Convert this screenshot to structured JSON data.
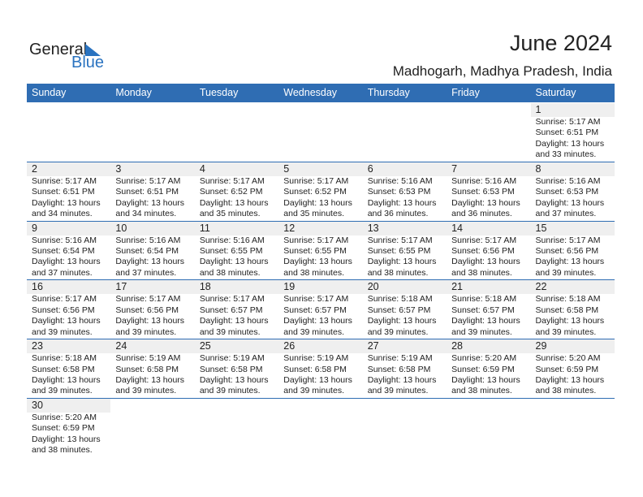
{
  "logo": {
    "text1": "General",
    "text2": "Blue"
  },
  "title": "June 2024",
  "location": "Madhogarh, Madhya Pradesh, India",
  "colors": {
    "header": "#2f6db3",
    "strip": "#efefef",
    "brand": "#2a73c0"
  },
  "weekdays": [
    "Sunday",
    "Monday",
    "Tuesday",
    "Wednesday",
    "Thursday",
    "Friday",
    "Saturday"
  ],
  "weeks": [
    [
      null,
      null,
      null,
      null,
      null,
      null,
      {
        "day": "1",
        "sunrise": "Sunrise: 5:17 AM",
        "sunset": "Sunset: 6:51 PM",
        "daylight1": "Daylight: 13 hours",
        "daylight2": "and 33 minutes."
      }
    ],
    [
      {
        "day": "2",
        "sunrise": "Sunrise: 5:17 AM",
        "sunset": "Sunset: 6:51 PM",
        "daylight1": "Daylight: 13 hours",
        "daylight2": "and 34 minutes."
      },
      {
        "day": "3",
        "sunrise": "Sunrise: 5:17 AM",
        "sunset": "Sunset: 6:51 PM",
        "daylight1": "Daylight: 13 hours",
        "daylight2": "and 34 minutes."
      },
      {
        "day": "4",
        "sunrise": "Sunrise: 5:17 AM",
        "sunset": "Sunset: 6:52 PM",
        "daylight1": "Daylight: 13 hours",
        "daylight2": "and 35 minutes."
      },
      {
        "day": "5",
        "sunrise": "Sunrise: 5:17 AM",
        "sunset": "Sunset: 6:52 PM",
        "daylight1": "Daylight: 13 hours",
        "daylight2": "and 35 minutes."
      },
      {
        "day": "6",
        "sunrise": "Sunrise: 5:16 AM",
        "sunset": "Sunset: 6:53 PM",
        "daylight1": "Daylight: 13 hours",
        "daylight2": "and 36 minutes."
      },
      {
        "day": "7",
        "sunrise": "Sunrise: 5:16 AM",
        "sunset": "Sunset: 6:53 PM",
        "daylight1": "Daylight: 13 hours",
        "daylight2": "and 36 minutes."
      },
      {
        "day": "8",
        "sunrise": "Sunrise: 5:16 AM",
        "sunset": "Sunset: 6:53 PM",
        "daylight1": "Daylight: 13 hours",
        "daylight2": "and 37 minutes."
      }
    ],
    [
      {
        "day": "9",
        "sunrise": "Sunrise: 5:16 AM",
        "sunset": "Sunset: 6:54 PM",
        "daylight1": "Daylight: 13 hours",
        "daylight2": "and 37 minutes."
      },
      {
        "day": "10",
        "sunrise": "Sunrise: 5:16 AM",
        "sunset": "Sunset: 6:54 PM",
        "daylight1": "Daylight: 13 hours",
        "daylight2": "and 37 minutes."
      },
      {
        "day": "11",
        "sunrise": "Sunrise: 5:16 AM",
        "sunset": "Sunset: 6:55 PM",
        "daylight1": "Daylight: 13 hours",
        "daylight2": "and 38 minutes."
      },
      {
        "day": "12",
        "sunrise": "Sunrise: 5:17 AM",
        "sunset": "Sunset: 6:55 PM",
        "daylight1": "Daylight: 13 hours",
        "daylight2": "and 38 minutes."
      },
      {
        "day": "13",
        "sunrise": "Sunrise: 5:17 AM",
        "sunset": "Sunset: 6:55 PM",
        "daylight1": "Daylight: 13 hours",
        "daylight2": "and 38 minutes."
      },
      {
        "day": "14",
        "sunrise": "Sunrise: 5:17 AM",
        "sunset": "Sunset: 6:56 PM",
        "daylight1": "Daylight: 13 hours",
        "daylight2": "and 38 minutes."
      },
      {
        "day": "15",
        "sunrise": "Sunrise: 5:17 AM",
        "sunset": "Sunset: 6:56 PM",
        "daylight1": "Daylight: 13 hours",
        "daylight2": "and 39 minutes."
      }
    ],
    [
      {
        "day": "16",
        "sunrise": "Sunrise: 5:17 AM",
        "sunset": "Sunset: 6:56 PM",
        "daylight1": "Daylight: 13 hours",
        "daylight2": "and 39 minutes."
      },
      {
        "day": "17",
        "sunrise": "Sunrise: 5:17 AM",
        "sunset": "Sunset: 6:56 PM",
        "daylight1": "Daylight: 13 hours",
        "daylight2": "and 39 minutes."
      },
      {
        "day": "18",
        "sunrise": "Sunrise: 5:17 AM",
        "sunset": "Sunset: 6:57 PM",
        "daylight1": "Daylight: 13 hours",
        "daylight2": "and 39 minutes."
      },
      {
        "day": "19",
        "sunrise": "Sunrise: 5:17 AM",
        "sunset": "Sunset: 6:57 PM",
        "daylight1": "Daylight: 13 hours",
        "daylight2": "and 39 minutes."
      },
      {
        "day": "20",
        "sunrise": "Sunrise: 5:18 AM",
        "sunset": "Sunset: 6:57 PM",
        "daylight1": "Daylight: 13 hours",
        "daylight2": "and 39 minutes."
      },
      {
        "day": "21",
        "sunrise": "Sunrise: 5:18 AM",
        "sunset": "Sunset: 6:57 PM",
        "daylight1": "Daylight: 13 hours",
        "daylight2": "and 39 minutes."
      },
      {
        "day": "22",
        "sunrise": "Sunrise: 5:18 AM",
        "sunset": "Sunset: 6:58 PM",
        "daylight1": "Daylight: 13 hours",
        "daylight2": "and 39 minutes."
      }
    ],
    [
      {
        "day": "23",
        "sunrise": "Sunrise: 5:18 AM",
        "sunset": "Sunset: 6:58 PM",
        "daylight1": "Daylight: 13 hours",
        "daylight2": "and 39 minutes."
      },
      {
        "day": "24",
        "sunrise": "Sunrise: 5:19 AM",
        "sunset": "Sunset: 6:58 PM",
        "daylight1": "Daylight: 13 hours",
        "daylight2": "and 39 minutes."
      },
      {
        "day": "25",
        "sunrise": "Sunrise: 5:19 AM",
        "sunset": "Sunset: 6:58 PM",
        "daylight1": "Daylight: 13 hours",
        "daylight2": "and 39 minutes."
      },
      {
        "day": "26",
        "sunrise": "Sunrise: 5:19 AM",
        "sunset": "Sunset: 6:58 PM",
        "daylight1": "Daylight: 13 hours",
        "daylight2": "and 39 minutes."
      },
      {
        "day": "27",
        "sunrise": "Sunrise: 5:19 AM",
        "sunset": "Sunset: 6:58 PM",
        "daylight1": "Daylight: 13 hours",
        "daylight2": "and 39 minutes."
      },
      {
        "day": "28",
        "sunrise": "Sunrise: 5:20 AM",
        "sunset": "Sunset: 6:59 PM",
        "daylight1": "Daylight: 13 hours",
        "daylight2": "and 38 minutes."
      },
      {
        "day": "29",
        "sunrise": "Sunrise: 5:20 AM",
        "sunset": "Sunset: 6:59 PM",
        "daylight1": "Daylight: 13 hours",
        "daylight2": "and 38 minutes."
      }
    ],
    [
      {
        "day": "30",
        "sunrise": "Sunrise: 5:20 AM",
        "sunset": "Sunset: 6:59 PM",
        "daylight1": "Daylight: 13 hours",
        "daylight2": "and 38 minutes."
      },
      null,
      null,
      null,
      null,
      null,
      null
    ]
  ]
}
